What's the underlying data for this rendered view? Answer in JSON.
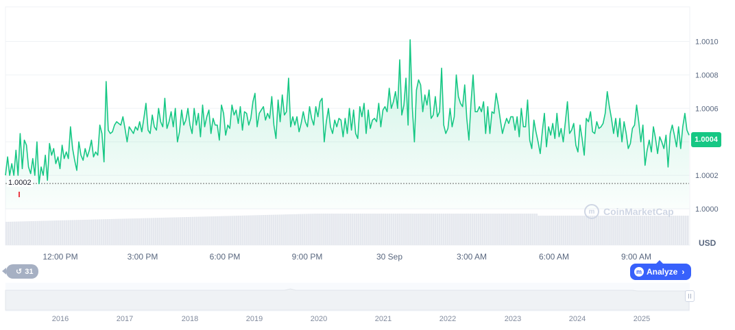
{
  "chart_data": {
    "type": "area",
    "title": "",
    "xlabel": "",
    "ylabel": "",
    "currency": "USD",
    "current_price": "1.0004",
    "low_price": "1.0002",
    "y_ticks": [
      "1.0010",
      "1.0008",
      "1.0006",
      "1.0004",
      "1.0002",
      "1.0000"
    ],
    "ylim": [
      0.99995,
      1.00107
    ],
    "x_ticks": [
      "12:00 PM",
      "3:00 PM",
      "6:00 PM",
      "9:00 PM",
      "30 Sep",
      "3:00 AM",
      "6:00 AM",
      "9:00 AM"
    ],
    "series": [
      {
        "values": [
          1.0002,
          1.00031,
          1.0002,
          1.00027,
          1.0002,
          1.00035,
          1.0002,
          1.00045,
          1.00024,
          1.00041,
          1.00038,
          1.00025,
          1.00021,
          1.0003,
          1.0002,
          1.0004,
          1.00015,
          1.00025,
          1.0002,
          1.00032,
          1.00017,
          1.00039,
          1.00032,
          1.00036,
          1.00027,
          1.00031,
          1.00024,
          1.00038,
          1.0003,
          1.00034,
          1.0003,
          1.00049,
          1.00036,
          1.00029,
          1.00023,
          1.0004,
          1.00032,
          1.00029,
          1.00036,
          1.00031,
          1.00035,
          1.00041,
          1.00031,
          1.00034,
          1.00032,
          1.0005,
          1.00045,
          1.00028,
          1.00076,
          1.00047,
          1.00045,
          1.00046,
          1.0005,
          1.00052,
          1.00051,
          1.0005,
          1.00055,
          1.00048,
          1.0004,
          1.00049,
          1.00047,
          1.00045,
          1.00049,
          1.00047,
          1.00052,
          1.00046,
          1.00054,
          1.00063,
          1.00047,
          1.00045,
          1.00056,
          1.00049,
          1.00047,
          1.0006,
          1.00052,
          1.00049,
          1.00066,
          1.00048,
          1.00052,
          1.00058,
          1.00049,
          1.0006,
          1.0004,
          1.00046,
          1.00059,
          1.0005,
          1.00053,
          1.0006,
          1.0005,
          1.00045,
          1.0006,
          1.0005,
          1.00057,
          1.00043,
          1.00062,
          1.00049,
          1.00055,
          1.00059,
          1.00045,
          1.00054,
          1.0005,
          1.0005,
          1.00041,
          1.00062,
          1.00057,
          1.00044,
          1.0005,
          1.00048,
          1.00062,
          1.00056,
          1.00059,
          1.00051,
          1.00061,
          1.00047,
          1.00058,
          1.00057,
          1.0005,
          1.00054,
          1.00064,
          1.00069,
          1.00049,
          1.00057,
          1.00059,
          1.00061,
          1.00053,
          1.00057,
          1.00054,
          1.00067,
          1.0005,
          1.00042,
          1.00065,
          1.00052,
          1.00068,
          1.00056,
          1.00058,
          1.00078,
          1.00049,
          1.00055,
          1.0005,
          1.00055,
          1.00046,
          1.00051,
          1.00058,
          1.00052,
          1.00049,
          1.00061,
          1.00054,
          1.0005,
          1.00061,
          1.00055,
          1.00064,
          1.00066,
          1.0004,
          1.00052,
          1.0006,
          1.00049,
          1.00045,
          1.00053,
          1.00049,
          1.00054,
          1.00053,
          1.00043,
          1.00054,
          1.00045,
          1.0006,
          1.00047,
          1.00059,
          1.00045,
          1.00042,
          1.00061,
          1.00055,
          1.00063,
          1.00045,
          1.00059,
          1.00048,
          1.00053,
          1.00054,
          1.00052,
          1.00063,
          1.00049,
          1.00059,
          1.00061,
          1.00058,
          1.00072,
          1.0006,
          1.00064,
          1.0007,
          1.0006,
          1.00089,
          1.00056,
          1.00062,
          1.00078,
          1.0005,
          1.00101,
          1.00061,
          1.0004,
          1.00071,
          1.00077,
          1.00074,
          1.00058,
          1.00068,
          1.00062,
          1.00071,
          1.00054,
          1.00056,
          1.00067,
          1.00055,
          1.00058,
          1.00084,
          1.0005,
          1.00045,
          1.00048,
          1.0006,
          1.00049,
          1.00055,
          1.0008,
          1.00067,
          1.00063,
          1.00061,
          1.00074,
          1.00054,
          1.00041,
          1.00063,
          1.0008,
          1.00058,
          1.00058,
          1.00061,
          1.00058,
          1.00064,
          1.00045,
          1.00061,
          1.00045,
          1.00058,
          1.00057,
          1.00069,
          1.00062,
          1.00053,
          1.00045,
          1.0005,
          1.00054,
          1.00051,
          1.00055,
          1.00055,
          1.00047,
          1.00055,
          1.00043,
          1.0006,
          1.00049,
          1.00049,
          1.00065,
          1.00041,
          1.00036,
          1.00053,
          1.00046,
          1.0004,
          1.00033,
          1.00046,
          1.00057,
          1.00037,
          1.00049,
          1.00044,
          1.00051,
          1.00042,
          1.00057,
          1.00043,
          1.00048,
          1.0004,
          1.00052,
          1.00064,
          1.00045,
          1.00047,
          1.00051,
          1.00038,
          1.00034,
          1.0005,
          1.00042,
          1.00032,
          1.00054,
          1.00052,
          1.00058,
          1.00046,
          1.00045,
          1.00052,
          1.00048,
          1.00049,
          1.00051,
          1.00057,
          1.0007,
          1.00061,
          1.00054,
          1.00045,
          1.00054,
          1.00043,
          1.00054,
          1.0004,
          1.00052,
          1.00045,
          1.00036,
          1.00039,
          1.00048,
          1.0005,
          1.00062,
          1.00052,
          1.0004,
          1.0005,
          1.00026,
          1.00035,
          1.00041,
          1.00034,
          1.00049,
          1.00042,
          1.00033,
          1.00043,
          1.0004,
          1.00036,
          1.00044,
          1.00025,
          1.00045,
          1.0005,
          1.00044,
          1.00037,
          1.00049,
          1.00036,
          1.00049,
          1.00057,
          1.00047,
          1.00044
        ]
      }
    ],
    "volume_bars": 330,
    "navigator_x_ticks": [
      "2016",
      "2017",
      "2018",
      "2019",
      "2020",
      "2021",
      "2022",
      "2023",
      "2024",
      "2025"
    ],
    "grid": true,
    "colors": {
      "line": "#16c784",
      "fill": "#16c784",
      "low_marker": "#ea3943",
      "volume": "#e5e8ee",
      "button": "#3861fb"
    }
  },
  "controls": {
    "history_label": "31",
    "analyze_label": "Analyze"
  },
  "watermark": "CoinMarketCap"
}
